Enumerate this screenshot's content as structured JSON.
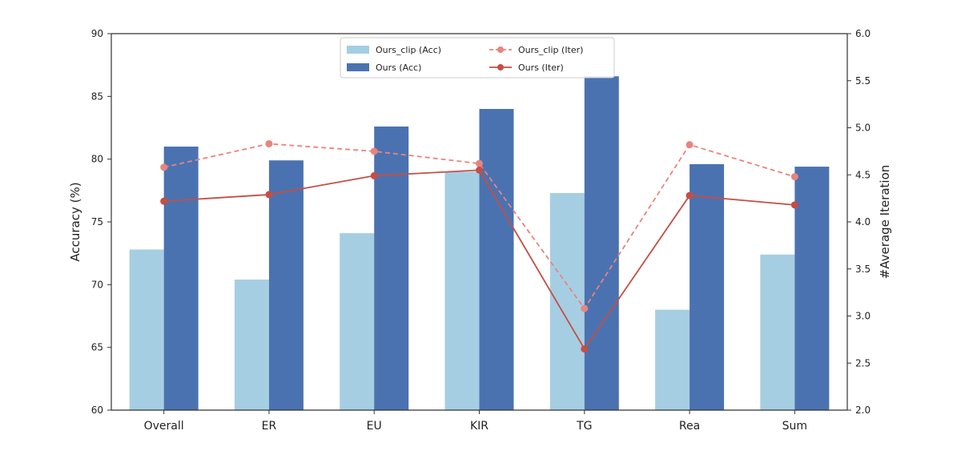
{
  "chart_data": {
    "type": "bar",
    "categories": [
      "Overall",
      "ER",
      "EU",
      "KIR",
      "TG",
      "Rea",
      "Sum"
    ],
    "series": [
      {
        "name": "Ours_clip (Acc)",
        "kind": "bar",
        "axis": "left",
        "color": "#a6cee3",
        "values": [
          72.8,
          70.4,
          74.1,
          79.0,
          77.3,
          68.0,
          72.4
        ]
      },
      {
        "name": "Ours (Acc)",
        "kind": "bar",
        "axis": "left",
        "color": "#4b72b0",
        "values": [
          81.0,
          79.9,
          82.6,
          84.0,
          86.6,
          79.6,
          79.4
        ]
      },
      {
        "name": "Ours_clip (Iter)",
        "kind": "line",
        "axis": "right",
        "color": "#e8847f",
        "style": "dashed",
        "values": [
          4.58,
          4.83,
          4.75,
          4.62,
          3.08,
          4.82,
          4.48
        ]
      },
      {
        "name": "Ours (Iter)",
        "kind": "line",
        "axis": "right",
        "color": "#c44e45",
        "style": "solid",
        "values": [
          4.22,
          4.29,
          4.49,
          4.55,
          2.65,
          4.28,
          4.18
        ]
      }
    ],
    "ylabel": "Accuracy (%)",
    "ylim": [
      60,
      90
    ],
    "yticks": [
      "60",
      "65",
      "70",
      "75",
      "80",
      "85",
      "90"
    ],
    "y2label": "#Average Iteration",
    "y2lim": [
      2.0,
      6.0
    ],
    "y2ticks": [
      "2.0",
      "2.5",
      "3.0",
      "3.5",
      "4.0",
      "4.5",
      "5.0",
      "5.5",
      "6.0"
    ],
    "grid": false,
    "legend_position": "top-center"
  }
}
